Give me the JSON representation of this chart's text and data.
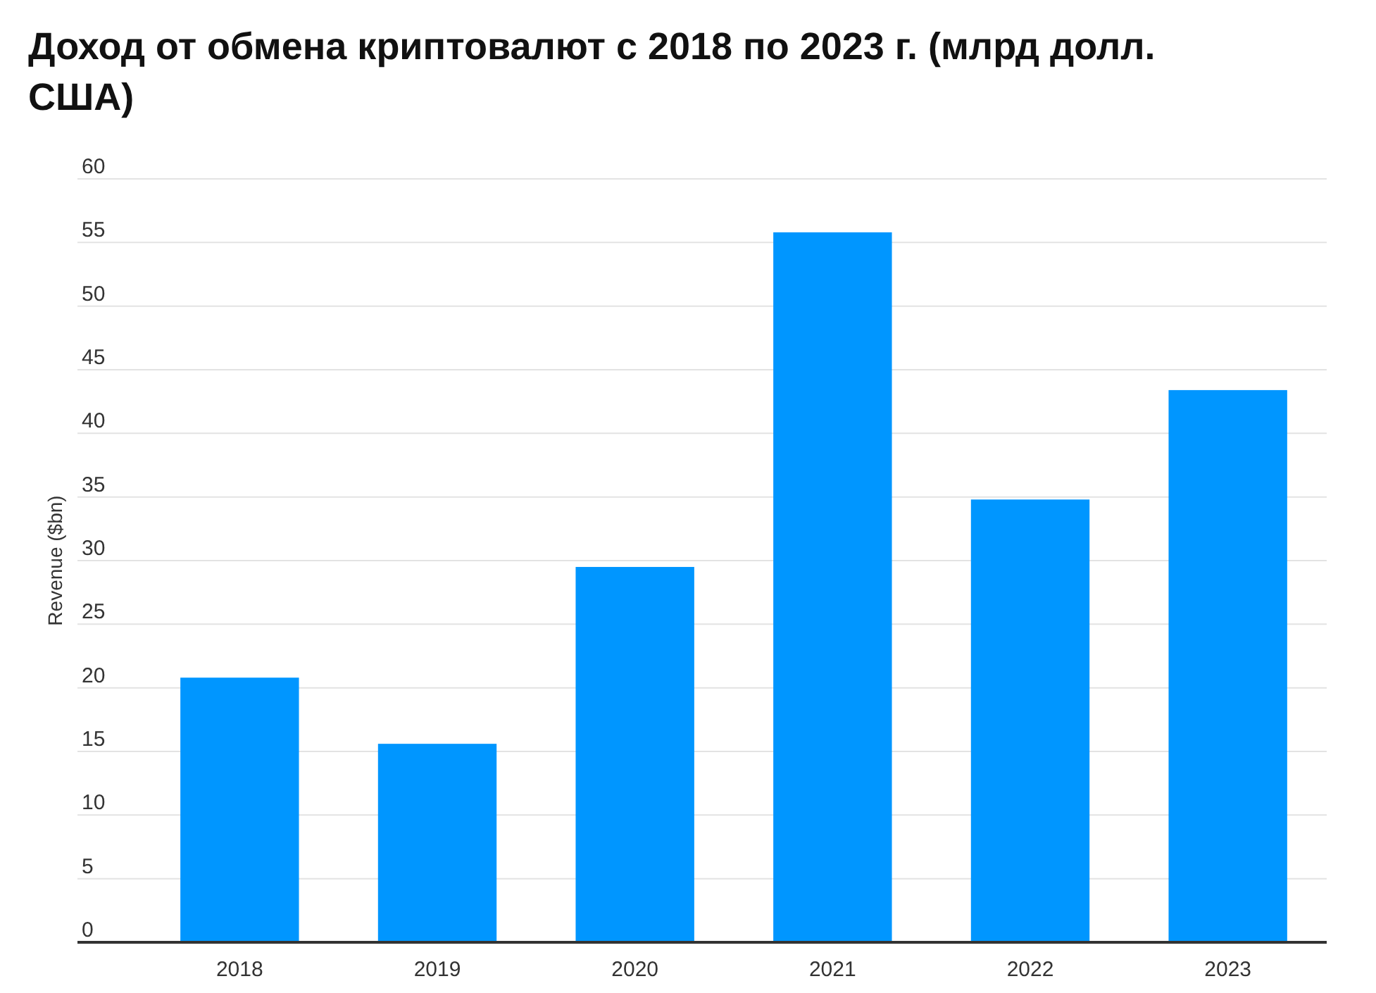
{
  "chart_data": {
    "type": "bar",
    "title": "Доход от обмена криптовалют с 2018 по 2023 г. (млрд долл. США)",
    "ylabel": "Revenue ($bn)",
    "categories": [
      "2018",
      "2019",
      "2020",
      "2021",
      "2022",
      "2023"
    ],
    "values": [
      20.8,
      15.6,
      29.5,
      55.8,
      34.8,
      43.4
    ],
    "color": "#0096ff",
    "ylim": [
      0,
      60
    ],
    "yticks": [
      0,
      5,
      10,
      15,
      20,
      25,
      30,
      35,
      40,
      45,
      50,
      55,
      60
    ],
    "grid": "y"
  }
}
